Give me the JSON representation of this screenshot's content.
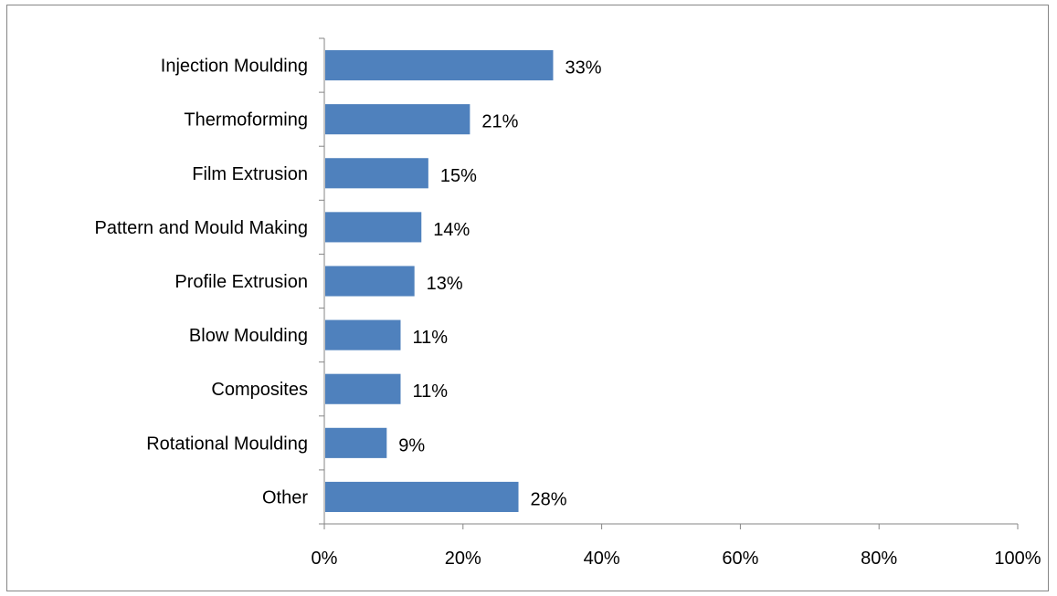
{
  "chart_data": {
    "type": "bar",
    "orientation": "horizontal",
    "title": "",
    "xlabel": "",
    "ylabel": "",
    "categories": [
      "Injection Moulding",
      "Thermoforming",
      "Film Extrusion",
      "Pattern and Mould Making",
      "Profile Extrusion",
      "Blow Moulding",
      "Composites",
      "Rotational Moulding",
      "Other"
    ],
    "values": [
      33,
      21,
      15,
      14,
      13,
      11,
      11,
      9,
      28
    ],
    "data_labels": [
      "33%",
      "21%",
      "15%",
      "14%",
      "13%",
      "11%",
      "11%",
      "9%",
      "28%"
    ],
    "xlim": [
      0,
      100
    ],
    "x_ticks": [
      0,
      20,
      40,
      60,
      80,
      100
    ],
    "x_tick_labels": [
      "0%",
      "20%",
      "40%",
      "60%",
      "80%",
      "100%"
    ],
    "grid": false,
    "legend": "none",
    "bar_color": "#4F81BD",
    "axis_color": "#868686"
  }
}
